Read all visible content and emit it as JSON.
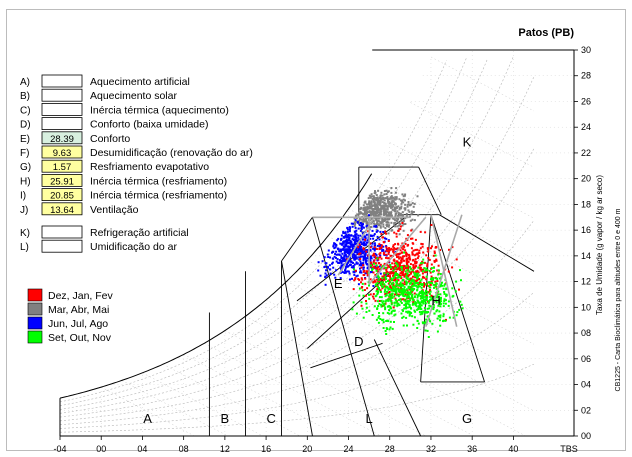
{
  "chart_data": {
    "type": "scatter",
    "title": "Patos (PB)",
    "xlabel": "TBS",
    "ylabel": "Taxa de Umidade  (g vapor / kg ar seco)",
    "side_note": "CB1225 - Carta Bioclimática para altitudes entre 0 e 400 m",
    "xlim": [
      -4,
      42
    ],
    "ylim": [
      0,
      30
    ],
    "x_ticks": [
      "-04",
      "00",
      "04",
      "08",
      "12",
      "16",
      "20",
      "24",
      "28",
      "32",
      "36",
      "40"
    ],
    "y_ticks": [
      "00",
      "02",
      "04",
      "06",
      "08",
      "10",
      "12",
      "14",
      "16",
      "18",
      "20",
      "22",
      "24",
      "26",
      "28",
      "30"
    ],
    "zones_legend": [
      {
        "code": "A)",
        "label": "Aquecimento artificial",
        "value": ""
      },
      {
        "code": "B)",
        "label": "Aquecimento solar",
        "value": ""
      },
      {
        "code": "C)",
        "label": "Inércia térmica (aquecimento)",
        "value": ""
      },
      {
        "code": "D)",
        "label": "Conforto (baixa umidade)",
        "value": ""
      },
      {
        "code": "E)",
        "label": "Conforto",
        "value": "28.39"
      },
      {
        "code": "F)",
        "label": "Desumidificação (renovação do ar)",
        "value": "9.63"
      },
      {
        "code": "G)",
        "label": "Resfriamento evapotativo",
        "value": "1.57"
      },
      {
        "code": "H)",
        "label": "Inércia térmica (resfriamento)",
        "value": "25.91"
      },
      {
        "code": "I)",
        "label": "Inércia térmica (resfriamento)",
        "value": "20.85"
      },
      {
        "code": "J)",
        "label": "Ventilação",
        "value": "13.64"
      },
      {
        "code": "K)",
        "label": "Refrigeração artificial",
        "value": ""
      },
      {
        "code": "L)",
        "label": "Umidificação do ar",
        "value": ""
      }
    ],
    "series": [
      {
        "name": "Dez, Jan, Fev",
        "color": "#ff0000",
        "center": [
          29,
          13
        ],
        "spread": [
          3.2,
          2.2
        ]
      },
      {
        "name": "Mar, Abr, Mai",
        "color": "#808080",
        "center": [
          27,
          17.5
        ],
        "spread": [
          2.5,
          1.2
        ]
      },
      {
        "name": "Jun, Jul, Ago",
        "color": "#0000ff",
        "center": [
          24.5,
          14.5
        ],
        "spread": [
          2.6,
          1.8
        ]
      },
      {
        "name": "Set, Out, Nov",
        "color": "#00ff00",
        "center": [
          30,
          11
        ],
        "spread": [
          3.5,
          2.0
        ]
      }
    ],
    "zone_labels": [
      {
        "text": "A",
        "x": 4.5,
        "y": 1
      },
      {
        "text": "B",
        "x": 12,
        "y": 1
      },
      {
        "text": "C",
        "x": 16.5,
        "y": 1
      },
      {
        "text": "L",
        "x": 26,
        "y": 1
      },
      {
        "text": "G",
        "x": 35.5,
        "y": 1
      },
      {
        "text": "D",
        "x": 25,
        "y": 7
      },
      {
        "text": "E",
        "x": 23,
        "y": 11.5
      },
      {
        "text": "H",
        "x": 32.5,
        "y": 10.2
      },
      {
        "text": "K",
        "x": 35.5,
        "y": 22.5
      }
    ],
    "grid": true
  }
}
